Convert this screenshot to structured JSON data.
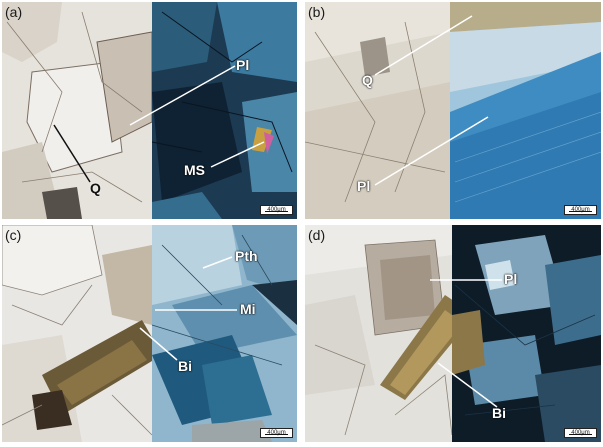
{
  "panels": [
    {
      "label": "(a)",
      "minerals": [
        "Pl",
        "MS",
        "Q"
      ],
      "scale": "400μm"
    },
    {
      "label": "(b)",
      "minerals": [
        "Q",
        "Pl"
      ],
      "scale": "400μm"
    },
    {
      "label": "(c)",
      "minerals": [
        "Pth",
        "Mi",
        "Bi"
      ],
      "scale": "400μm"
    },
    {
      "label": "(d)",
      "minerals": [
        "Pl",
        "Bi"
      ],
      "scale": "400μm"
    }
  ]
}
